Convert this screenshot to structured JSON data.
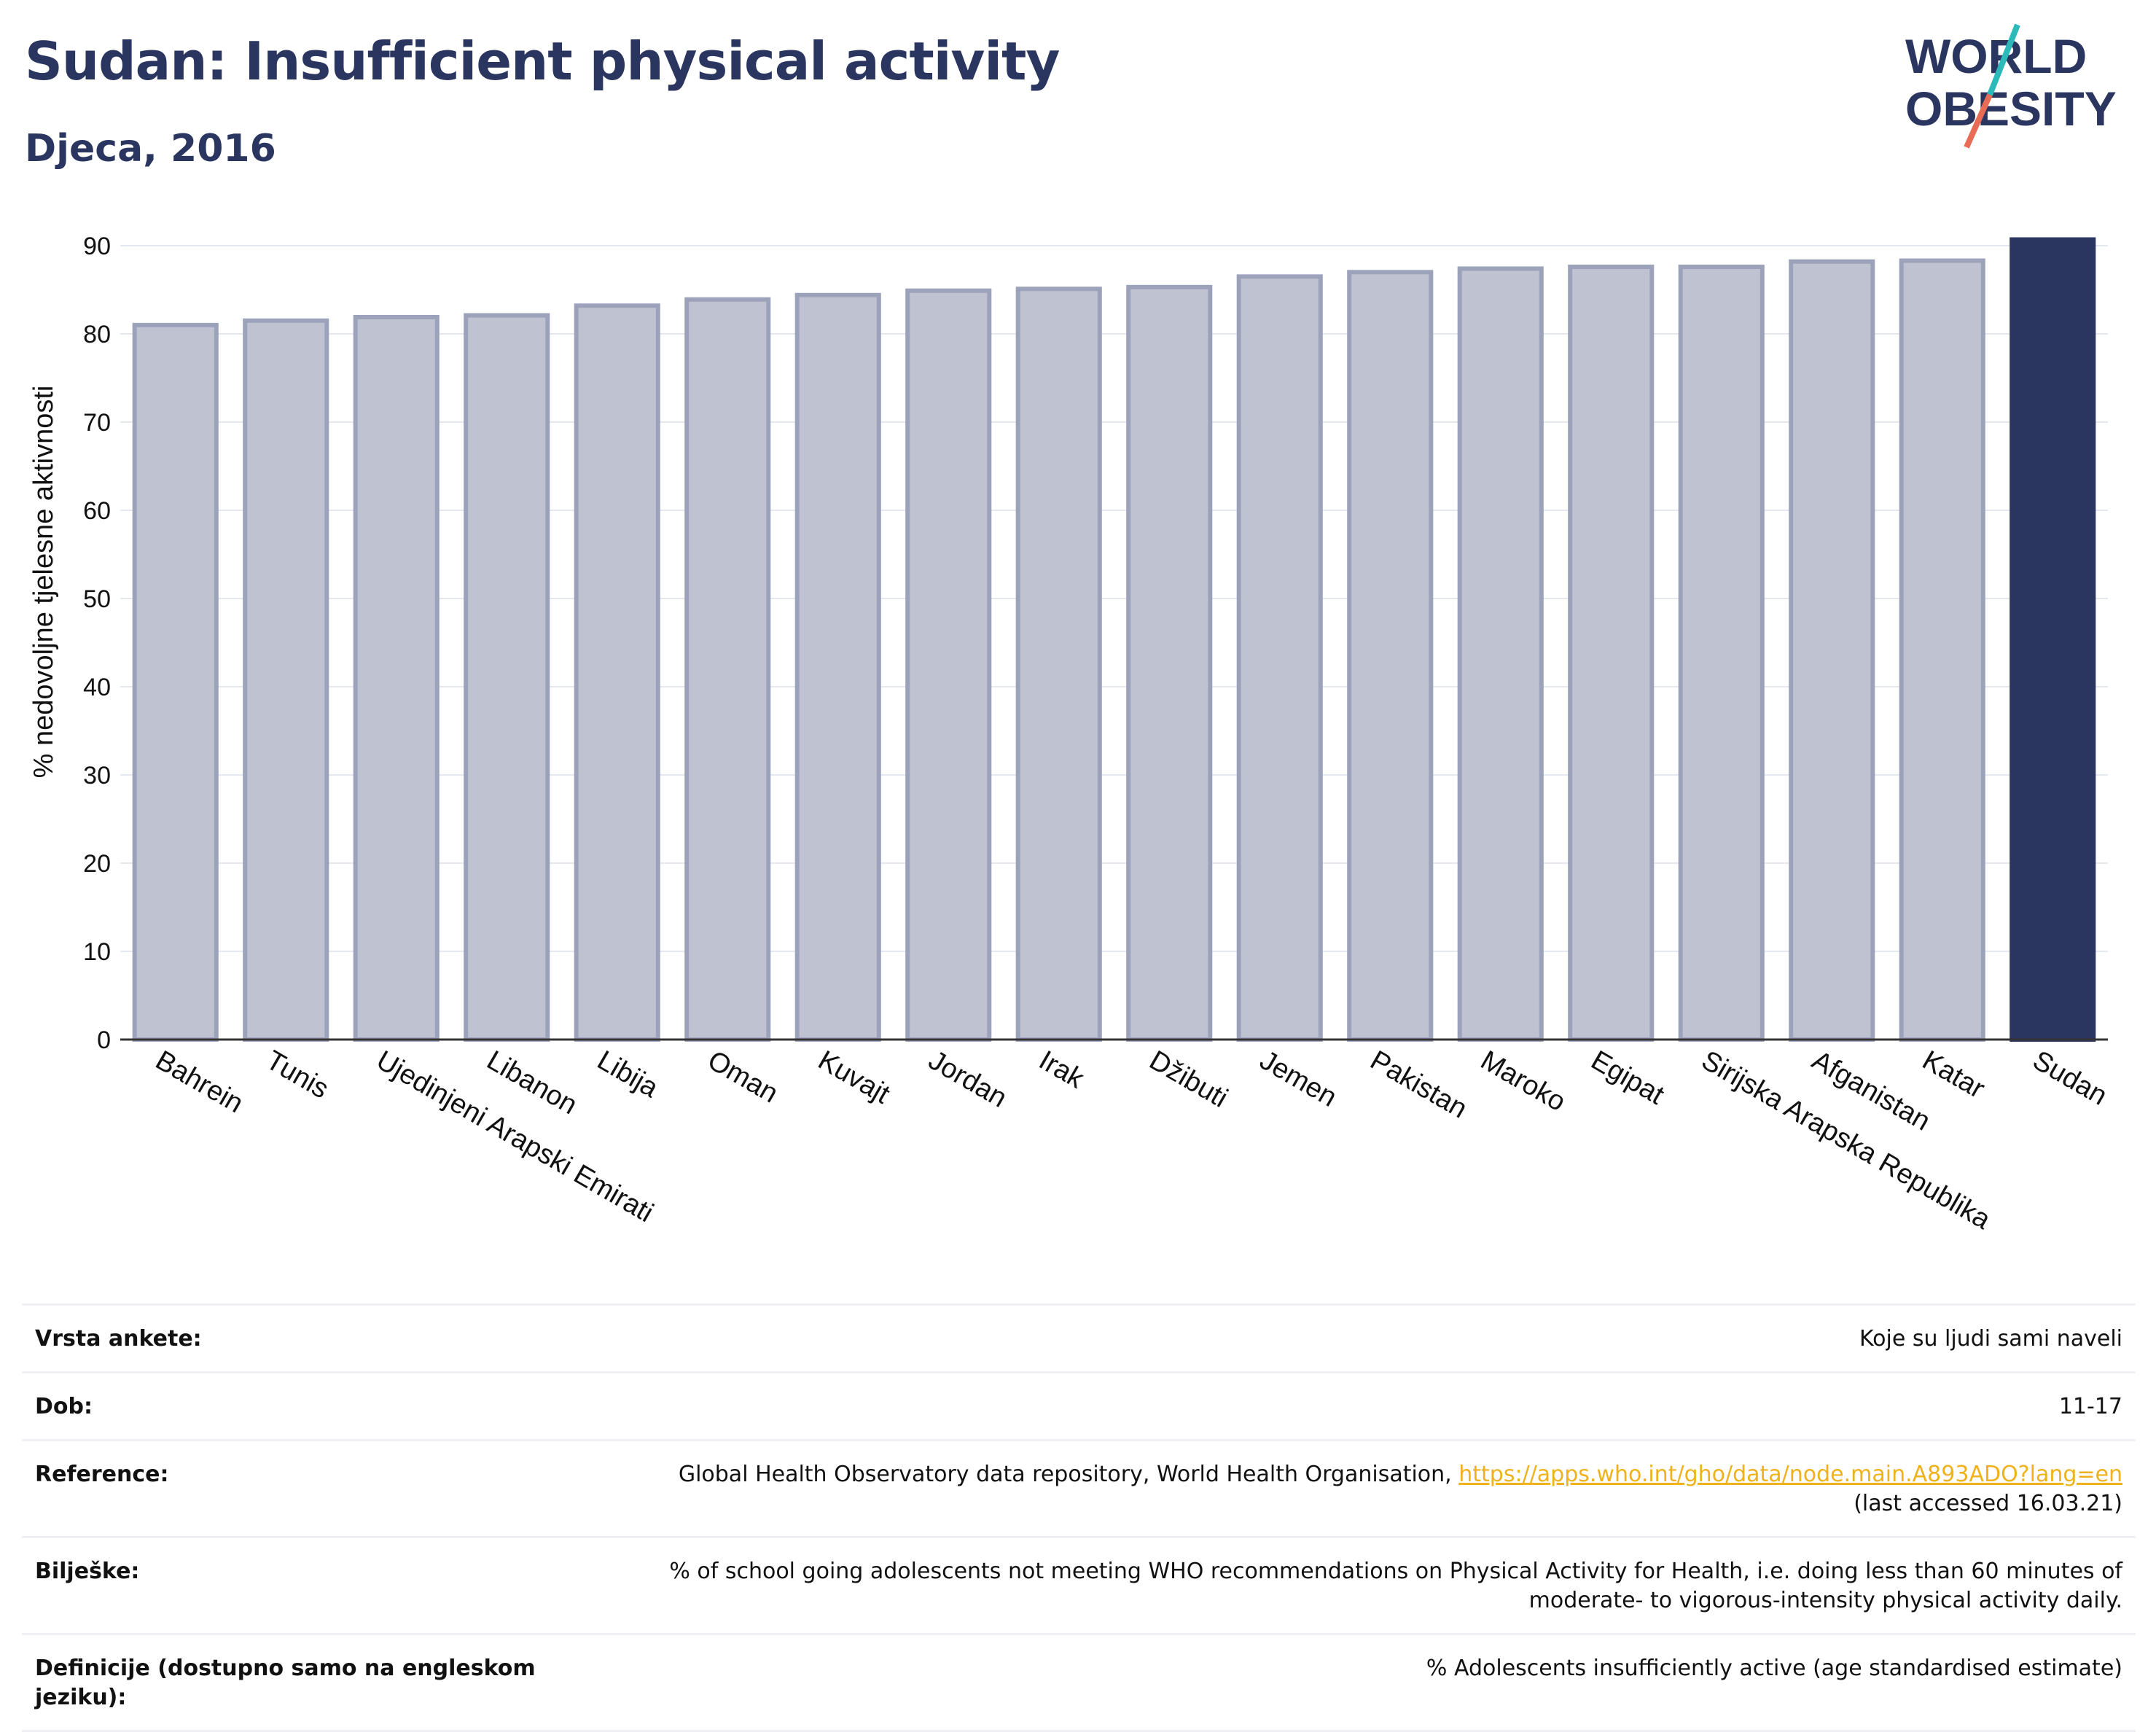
{
  "title": "Sudan: Insufficient physical activity",
  "subtitle": "Djeca, 2016",
  "logo": {
    "line1": "WORLD",
    "line2": "OBESITY",
    "colors": {
      "text": "#2b3660",
      "slash_teal": "#2bb9b9",
      "slash_coral": "#e86b56"
    }
  },
  "colors": {
    "bar_other": "#bfc2d0",
    "bar_other_stroke": "#9da2bb",
    "bar_highlight": "#2b3660",
    "axis_text": "#111111",
    "grid": "#e6e8ef"
  },
  "chart_data": {
    "type": "bar",
    "title": "Sudan: Insufficient physical activity",
    "subtitle": "Djeca, 2016",
    "ylabel": "% nedovoljne tjelesne aktivnosti",
    "xlabel": "",
    "ylim": [
      0,
      90
    ],
    "yticks": [
      0,
      10,
      20,
      30,
      40,
      50,
      60,
      70,
      80,
      90
    ],
    "grid": true,
    "highlight": "Sudan",
    "categories": [
      "Bahrein",
      "Tunis",
      "Ujedinjeni Arapski Emirati",
      "Libanon",
      "Libija",
      "Oman",
      "Kuvajt",
      "Jordan",
      "Irak",
      "Džibuti",
      "Jemen",
      "Pakistan",
      "Maroko",
      "Egipat",
      "Sirijska Arapska Republika",
      "Afganistan",
      "Katar",
      "Sudan"
    ],
    "values": [
      81.0,
      81.5,
      81.9,
      82.1,
      83.2,
      83.9,
      84.4,
      84.9,
      85.1,
      85.3,
      86.5,
      87.0,
      87.4,
      87.6,
      87.6,
      88.2,
      88.3,
      90.7
    ]
  },
  "meta": [
    {
      "label": "Vrsta ankete:",
      "value": "Koje su ljudi sami naveli"
    },
    {
      "label": "Dob:",
      "value": "11-17"
    },
    {
      "label": "Reference:",
      "value": "Global Health Observatory data repository, World Health Organisation,",
      "link": "https://apps.who.int/gho/data/node.main.A893ADO?lang=en",
      "value2": "(last accessed 16.03.21)"
    },
    {
      "label": "Bilješke:",
      "value": "% of school going adolescents not meeting WHO recommendations on Physical Activity for Health, i.e. doing less than 60 minutes of moderate- to vigorous-intensity physical activity daily."
    },
    {
      "label": "Definicije (dostupno samo na engleskom jeziku):",
      "value": "% Adolescents insufficiently active (age standardised estimate)"
    }
  ]
}
